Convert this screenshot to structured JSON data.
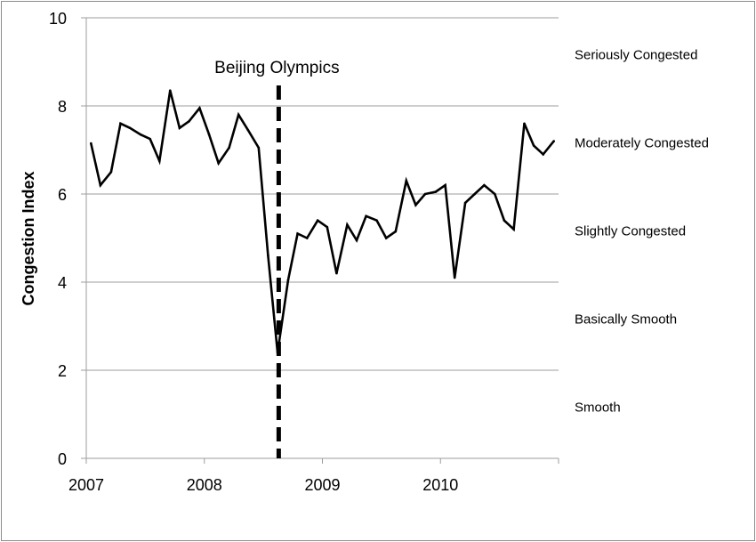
{
  "chart_data": {
    "type": "line",
    "title": "",
    "xlabel": "",
    "ylabel": "Congestion Index",
    "xlim": [
      2007.0,
      2011.0
    ],
    "ylim": [
      0,
      10
    ],
    "yticks": [
      0,
      2,
      4,
      6,
      8,
      10
    ],
    "ytick_labels": [
      "0",
      "2",
      "4",
      "6",
      "8",
      "10"
    ],
    "xticks": [
      2007,
      2008,
      2009,
      2010
    ],
    "xtick_labels": [
      "2007",
      "2008",
      "2009",
      "2010"
    ],
    "grid": "horizontal",
    "legend": "none",
    "line_color": "#000000",
    "grid_color": "#9d9d9d",
    "series": [
      {
        "x": [
          2007.04,
          2007.12,
          2007.21,
          2007.29,
          2007.37,
          2007.46,
          2007.54,
          2007.62,
          2007.71,
          2007.79,
          2007.87,
          2007.96,
          2008.04,
          2008.12,
          2008.21,
          2008.29,
          2008.37,
          2008.46,
          2008.54,
          2008.62,
          2008.71,
          2008.79,
          2008.87,
          2008.96,
          2009.04,
          2009.12,
          2009.21,
          2009.29,
          2009.37,
          2009.46,
          2009.54,
          2009.62,
          2009.71,
          2009.79,
          2009.87,
          2009.96,
          2010.04,
          2010.12,
          2010.21,
          2010.29,
          2010.37,
          2010.46,
          2010.54,
          2010.62,
          2010.71,
          2010.79,
          2010.87,
          2010.96
        ],
        "values": [
          7.15,
          6.2,
          6.5,
          7.6,
          7.5,
          7.35,
          7.25,
          6.75,
          8.35,
          7.5,
          7.65,
          7.95,
          7.35,
          6.7,
          7.05,
          7.8,
          7.45,
          7.05,
          4.6,
          2.4,
          4.05,
          5.1,
          5.0,
          5.4,
          5.25,
          4.2,
          5.3,
          4.95,
          5.5,
          5.4,
          5.0,
          5.15,
          6.3,
          5.75,
          6.0,
          6.05,
          6.2,
          4.1,
          5.8,
          6.0,
          6.2,
          6.0,
          5.4,
          5.2,
          7.6,
          7.1,
          6.9,
          7.2
        ]
      }
    ],
    "annotations": [
      {
        "text": "Beijing Olympics",
        "x": 2008.63,
        "style": "dashed vertical line"
      }
    ],
    "bands": [
      {
        "label": "Seriously Congested",
        "range": [
          8,
          10
        ]
      },
      {
        "label": "Moderately Congested",
        "range": [
          6,
          8
        ]
      },
      {
        "label": "Slightly Congested",
        "range": [
          4,
          6
        ]
      },
      {
        "label": "Basically Smooth",
        "range": [
          2,
          4
        ]
      },
      {
        "label": "Smooth",
        "range": [
          0,
          2
        ]
      }
    ]
  }
}
